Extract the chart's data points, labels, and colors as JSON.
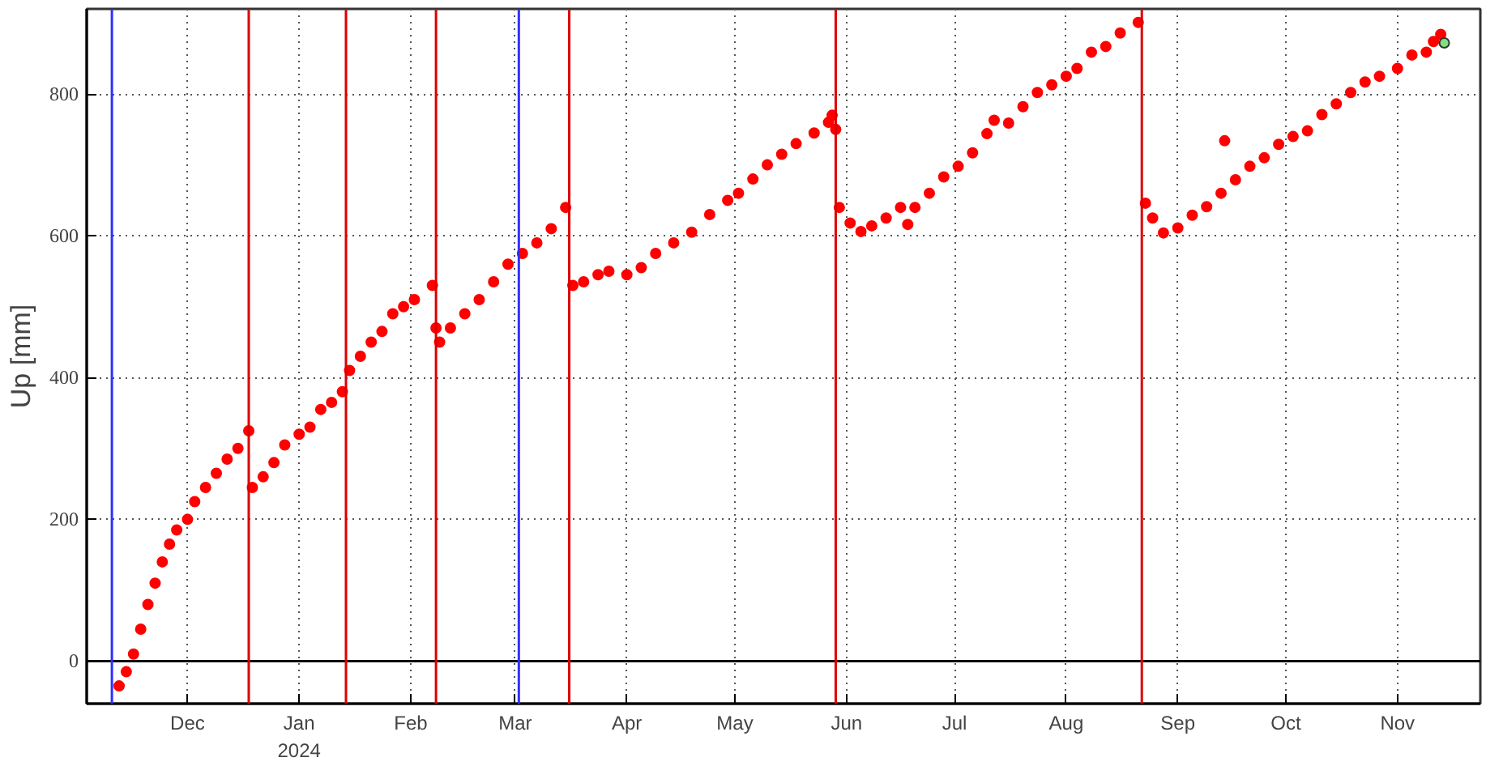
{
  "chart_data": {
    "type": "scatter",
    "ylabel": "Up [mm]",
    "x": [
      "2023-11-12",
      "2023-11-14",
      "2023-11-16",
      "2023-11-18",
      "2023-11-20",
      "2023-11-22",
      "2023-11-24",
      "2023-11-26",
      "2023-11-28",
      "2023-12-01",
      "2023-12-03",
      "2023-12-06",
      "2023-12-09",
      "2023-12-12",
      "2023-12-15",
      "2023-12-18",
      "2023-12-19",
      "2023-12-22",
      "2023-12-25",
      "2023-12-28",
      "2024-01-01",
      "2024-01-04",
      "2024-01-07",
      "2024-01-10",
      "2024-01-13",
      "2024-01-15",
      "2024-01-18",
      "2024-01-21",
      "2024-01-24",
      "2024-01-27",
      "2024-01-30",
      "2024-02-02",
      "2024-02-07",
      "2024-02-08",
      "2024-02-09",
      "2024-02-12",
      "2024-02-16",
      "2024-02-20",
      "2024-02-24",
      "2024-02-28",
      "2024-03-03",
      "2024-03-07",
      "2024-03-11",
      "2024-03-15",
      "2024-03-17",
      "2024-03-20",
      "2024-03-24",
      "2024-03-27",
      "2024-04-01",
      "2024-04-05",
      "2024-04-09",
      "2024-04-14",
      "2024-04-19",
      "2024-04-24",
      "2024-04-29",
      "2024-05-02",
      "2024-05-06",
      "2024-05-10",
      "2024-05-14",
      "2024-05-18",
      "2024-05-23",
      "2024-05-27",
      "2024-05-28",
      "2024-05-29",
      "2024-05-30",
      "2024-06-02",
      "2024-06-05",
      "2024-06-08",
      "2024-06-12",
      "2024-06-16",
      "2024-06-18",
      "2024-06-20",
      "2024-06-24",
      "2024-06-28",
      "2024-07-02",
      "2024-07-06",
      "2024-07-10",
      "2024-07-12",
      "2024-07-16",
      "2024-07-20",
      "2024-07-24",
      "2024-07-28",
      "2024-08-01",
      "2024-08-04",
      "2024-08-08",
      "2024-08-12",
      "2024-08-16",
      "2024-08-21",
      "2024-08-23",
      "2024-08-25",
      "2024-08-28",
      "2024-09-01",
      "2024-09-05",
      "2024-09-09",
      "2024-09-13",
      "2024-09-14",
      "2024-09-17",
      "2024-09-21",
      "2024-09-25",
      "2024-09-29",
      "2024-10-03",
      "2024-10-07",
      "2024-10-11",
      "2024-10-15",
      "2024-10-19",
      "2024-10-23",
      "2024-10-27",
      "2024-11-01",
      "2024-11-05",
      "2024-11-09",
      "2024-11-11",
      "2024-11-13"
    ],
    "series": [
      {
        "color": "#ff0000",
        "values": [
          -35,
          -15,
          10,
          45,
          80,
          110,
          140,
          165,
          185,
          200,
          225,
          245,
          265,
          285,
          300,
          325,
          245,
          260,
          280,
          305,
          320,
          330,
          355,
          365,
          380,
          410,
          430,
          450,
          465,
          490,
          500,
          510,
          530,
          470,
          450,
          470,
          490,
          510,
          535,
          560,
          575,
          590,
          610,
          640,
          530,
          535,
          545,
          550,
          545,
          555,
          575,
          590,
          605,
          630,
          650,
          660,
          680,
          700,
          715,
          730,
          745,
          760,
          770,
          750,
          640,
          618,
          606,
          614,
          625,
          640,
          616,
          640,
          660,
          683,
          698,
          717,
          744,
          763,
          759,
          782,
          802,
          813,
          825,
          836,
          859,
          867,
          886,
          901,
          646,
          625,
          604,
          611,
          629,
          641,
          660,
          734,
          679,
          698,
          710,
          729,
          740,
          748,
          771,
          786,
          802,
          817,
          825,
          836,
          855,
          859,
          874,
          884
        ]
      },
      {
        "color": "#7fe07f",
        "x": [
          "2024-11-14"
        ],
        "values": [
          872
        ]
      }
    ],
    "xlim": [
      "2023-11-03",
      "2024-11-24"
    ],
    "xticks": [
      {
        "value": "2023-12-01",
        "label": "Dec"
      },
      {
        "value": "2024-01-01",
        "label": "Jan\n2024"
      },
      {
        "value": "2024-02-01",
        "label": "Feb"
      },
      {
        "value": "2024-03-01",
        "label": "Mar"
      },
      {
        "value": "2024-04-01",
        "label": "Apr"
      },
      {
        "value": "2024-05-01",
        "label": "May"
      },
      {
        "value": "2024-06-01",
        "label": "Jun"
      },
      {
        "value": "2024-07-01",
        "label": "Jul"
      },
      {
        "value": "2024-08-01",
        "label": "Aug"
      },
      {
        "value": "2024-09-01",
        "label": "Sep"
      },
      {
        "value": "2024-10-01",
        "label": "Oct"
      },
      {
        "value": "2024-11-01",
        "label": "Nov"
      }
    ],
    "ylim": [
      -60,
      920
    ],
    "yticks": [
      0,
      200,
      400,
      600,
      800
    ],
    "grid": true,
    "marker": "circle",
    "ref_lines": [
      {
        "axis": "y",
        "value": 0,
        "color": "#000000"
      },
      {
        "axis": "x",
        "value": "2023-11-10",
        "color": "#3030ff"
      },
      {
        "axis": "x",
        "value": "2023-12-18",
        "color": "#dd0000"
      },
      {
        "axis": "x",
        "value": "2024-01-14",
        "color": "#dd0000"
      },
      {
        "axis": "x",
        "value": "2024-02-08",
        "color": "#dd0000"
      },
      {
        "axis": "x",
        "value": "2024-03-02",
        "color": "#3030ff"
      },
      {
        "axis": "x",
        "value": "2024-03-16",
        "color": "#dd0000"
      },
      {
        "axis": "x",
        "value": "2024-05-29",
        "color": "#dd0000"
      },
      {
        "axis": "x",
        "value": "2024-08-22",
        "color": "#dd0000"
      }
    ]
  }
}
